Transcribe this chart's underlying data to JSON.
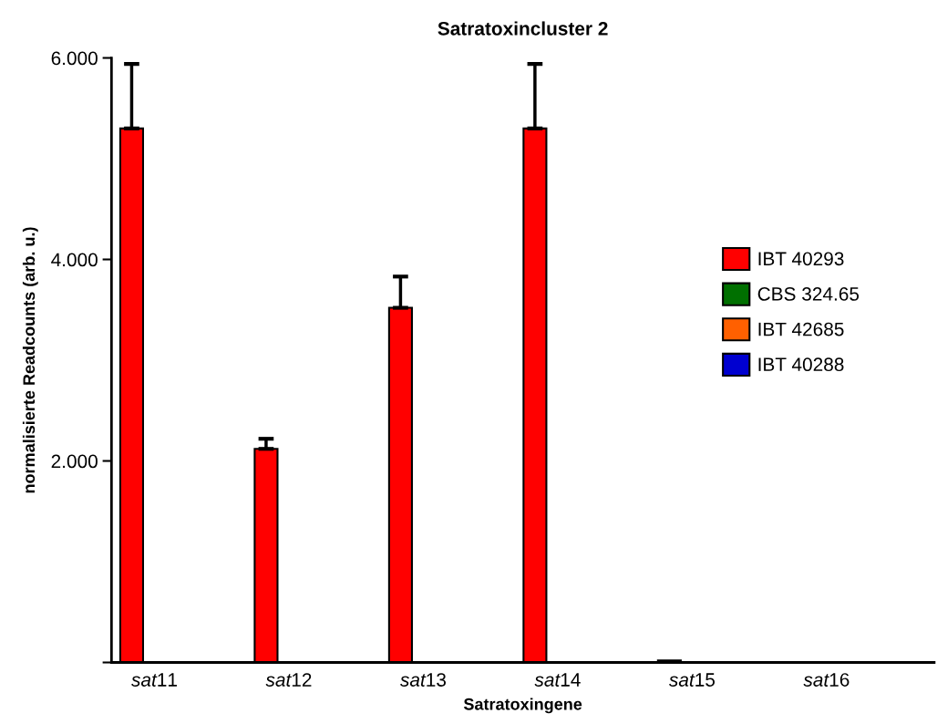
{
  "chart_data": {
    "type": "bar",
    "title": "Satratoxincluster 2",
    "xlabel": "Satratoxingene",
    "ylabel": "normalisierte Readcounts (arb. u.)",
    "categories": [
      "sat11",
      "sat12",
      "sat13",
      "sat14",
      "sat15",
      "sat16"
    ],
    "series": [
      {
        "name": "IBT 40293",
        "color": "#ff0000",
        "values": [
          5.3,
          2.12,
          3.52,
          5.3,
          0.02,
          null
        ],
        "errors": [
          0.64,
          0.1,
          0.31,
          0.64,
          null,
          null
        ]
      },
      {
        "name": "CBS 324.65",
        "color": "#007000",
        "values": [
          null,
          null,
          null,
          null,
          null,
          null
        ]
      },
      {
        "name": "IBT 42685",
        "color": "#ff6000",
        "values": [
          null,
          null,
          null,
          null,
          null,
          null
        ]
      },
      {
        "name": "IBT 40288",
        "color": "#0000d0",
        "values": [
          null,
          null,
          null,
          null,
          null,
          null
        ]
      }
    ],
    "ylim": [
      0,
      6
    ],
    "yticks": [
      {
        "value": 0,
        "label": null
      },
      {
        "value": 2,
        "label": "2.000"
      },
      {
        "value": 4,
        "label": "4.000"
      },
      {
        "value": 6,
        "label": "6.000"
      }
    ],
    "grid": false,
    "legend": "right"
  }
}
